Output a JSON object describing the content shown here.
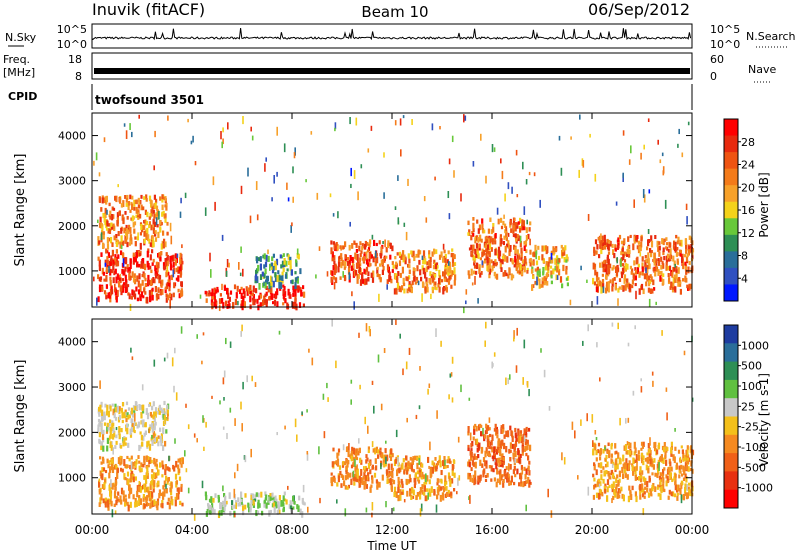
{
  "header": {
    "station": "Inuvik (fitACF)",
    "beam": "Beam 10",
    "date": "06/Sep/2012"
  },
  "noise_panel": {
    "left_label": "N.Sky",
    "right_label": "N.Search",
    "left_ticks": [
      "10^5",
      "10^0"
    ],
    "right_ticks": [
      "10^5",
      "10^0"
    ]
  },
  "freq_panel": {
    "left_label_line1": "Freq.",
    "left_label_line2": "[MHz]",
    "right_label": "Nave",
    "left_ticks": [
      "18",
      "8"
    ],
    "right_ticks": [
      "60",
      "0"
    ]
  },
  "cpid_panel": {
    "label": "CPID",
    "program": "twofsound 3501"
  },
  "chart_data": [
    {
      "type": "heatmap",
      "parameter": "power",
      "xlabel": "",
      "ylabel": "Slant Range [km]",
      "x_range_hours": [
        0,
        24
      ],
      "ylim": [
        200,
        4500
      ],
      "y_ticks": [
        "1000",
        "2000",
        "3000",
        "4000"
      ],
      "colorbar": {
        "label": "Power [dB]",
        "tick_labels": [
          "4",
          "8",
          "12",
          "16",
          "20",
          "24",
          "28"
        ],
        "colors": [
          "#0018ff",
          "#3050c0",
          "#2a6e9a",
          "#2e8f55",
          "#68c83a",
          "#f4d21a",
          "#f7a12a",
          "#f47b1a",
          "#ef5412",
          "#e82a0e",
          "#ff0000"
        ]
      },
      "features": [
        {
          "t": [
            0.2,
            3.6
          ],
          "r": [
            400,
            1500
          ],
          "v": 28
        },
        {
          "t": [
            0.2,
            3.0
          ],
          "r": [
            1600,
            2700
          ],
          "v": 22
        },
        {
          "t": [
            4.5,
            8.5
          ],
          "r": [
            250,
            700
          ],
          "v": 30
        },
        {
          "t": [
            6.5,
            8.3
          ],
          "r": [
            700,
            1400
          ],
          "v": 10
        },
        {
          "t": [
            9.5,
            12.0
          ],
          "r": [
            800,
            1700
          ],
          "v": 26
        },
        {
          "t": [
            12.0,
            14.5
          ],
          "r": [
            600,
            1500
          ],
          "v": 22
        },
        {
          "t": [
            15.0,
            17.5
          ],
          "r": [
            900,
            2200
          ],
          "v": 24
        },
        {
          "t": [
            17.5,
            19.0
          ],
          "r": [
            700,
            1600
          ],
          "v": 20
        },
        {
          "t": [
            20.0,
            24.0
          ],
          "r": [
            600,
            1800
          ],
          "v": 24
        }
      ]
    },
    {
      "type": "heatmap",
      "parameter": "velocity",
      "xlabel": "Time UT",
      "ylabel": "Slant Range [km]",
      "x_range_hours": [
        0,
        24
      ],
      "x_ticks": [
        "00:00",
        "04:00",
        "08:00",
        "12:00",
        "16:00",
        "20:00",
        "00:00"
      ],
      "ylim": [
        200,
        4500
      ],
      "y_ticks": [
        "1000",
        "2000",
        "3000",
        "4000"
      ],
      "colorbar": {
        "label": "Velocity [m s-1]",
        "tick_labels": [
          "1000",
          "500",
          "100",
          "25",
          "-25",
          "-100",
          "-500",
          "-1000"
        ],
        "colors": [
          "#1e3ca0",
          "#2a6e9a",
          "#2e8f55",
          "#60c040",
          "#c8c8c8",
          "#f4c01a",
          "#f58a20",
          "#f06018",
          "#e83010",
          "#ff0000"
        ]
      },
      "features": [
        {
          "t": [
            0.2,
            3.6
          ],
          "r": [
            400,
            1500
          ],
          "v": -300
        },
        {
          "t": [
            0.2,
            3.0
          ],
          "r": [
            1700,
            2700
          ],
          "v": 0
        },
        {
          "t": [
            4.5,
            8.5
          ],
          "r": [
            250,
            700
          ],
          "v": 200
        },
        {
          "t": [
            9.5,
            12.0
          ],
          "r": [
            800,
            1700
          ],
          "v": -400
        },
        {
          "t": [
            12.0,
            14.5
          ],
          "r": [
            600,
            1500
          ],
          "v": -300
        },
        {
          "t": [
            15.0,
            17.5
          ],
          "r": [
            900,
            2200
          ],
          "v": -500
        },
        {
          "t": [
            20.0,
            24.0
          ],
          "r": [
            600,
            1800
          ],
          "v": -300
        }
      ]
    }
  ]
}
